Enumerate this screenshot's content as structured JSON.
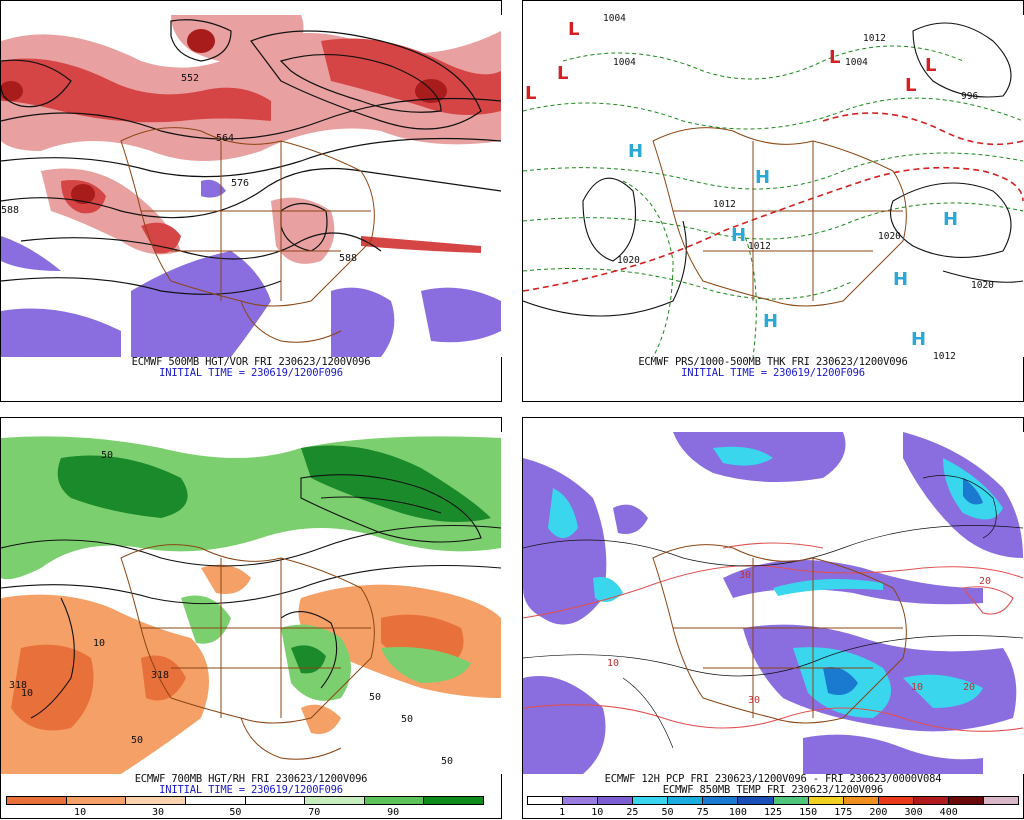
{
  "panels": [
    {
      "id": "p1",
      "caption_line1": "ECMWF 500MB HGT/VOR FRI 230623/1200V096",
      "caption_line2": "INITIAL TIME = 230619/1200F096",
      "contour_labels": [
        "552",
        "564",
        "576",
        "588",
        "588"
      ]
    },
    {
      "id": "p2",
      "caption_line1": "ECMWF PRS/1000-500MB THK FRI 230623/1200V096",
      "caption_line2": "INITIAL TIME = 230619/1200F096",
      "pressure_labels": [
        "1004",
        "1004",
        "1012",
        "1004",
        "996",
        "1020",
        "1020",
        "1020",
        "1012",
        "1012",
        "1012"
      ],
      "highs": [
        "H",
        "H",
        "H",
        "H",
        "H",
        "H",
        "H"
      ],
      "lows": [
        "L",
        "L",
        "L",
        "L",
        "L",
        "L"
      ]
    },
    {
      "id": "p3",
      "caption_line1": "ECMWF 700MB HGT/RH FRI 230623/1200V096",
      "caption_line2": "INITIAL TIME = 230619/1200F096",
      "contour_labels": [
        "10",
        "318",
        "10",
        "50",
        "318",
        "50",
        "50",
        "50",
        "50"
      ],
      "colorbar": {
        "colors": [
          "#e8703a",
          "#f4a066",
          "#fbd3ad",
          "#ffffff",
          "#ffffff",
          "#c7ecbd",
          "#5cc25a",
          "#0e8a1a"
        ],
        "labels": [
          "10",
          "30",
          "50",
          "70",
          "90"
        ]
      }
    },
    {
      "id": "p4",
      "caption_line1": "ECMWF 12H PCP FRI 230623/1200V096 - FRI 230623/0000V084",
      "caption_line2": "ECMWF 850MB TEMP FRI 230623/1200V096",
      "contour_labels": [
        "30",
        "20",
        "10",
        "20",
        "10",
        "30"
      ],
      "colorbar": {
        "colors": [
          "#ffffff",
          "#9a7ce0",
          "#7d5fd4",
          "#3ad6ee",
          "#1aaee0",
          "#1a7ad0",
          "#1a4fb8",
          "#4fc47a",
          "#f0d020",
          "#f09020",
          "#e83a1a",
          "#b01a1a",
          "#6a0a0a",
          "#d8b8c8"
        ],
        "labels": [
          "1",
          "10",
          "25",
          "50",
          "75",
          "100",
          "125",
          "150",
          "175",
          "200",
          "300",
          "400"
        ]
      }
    }
  ]
}
